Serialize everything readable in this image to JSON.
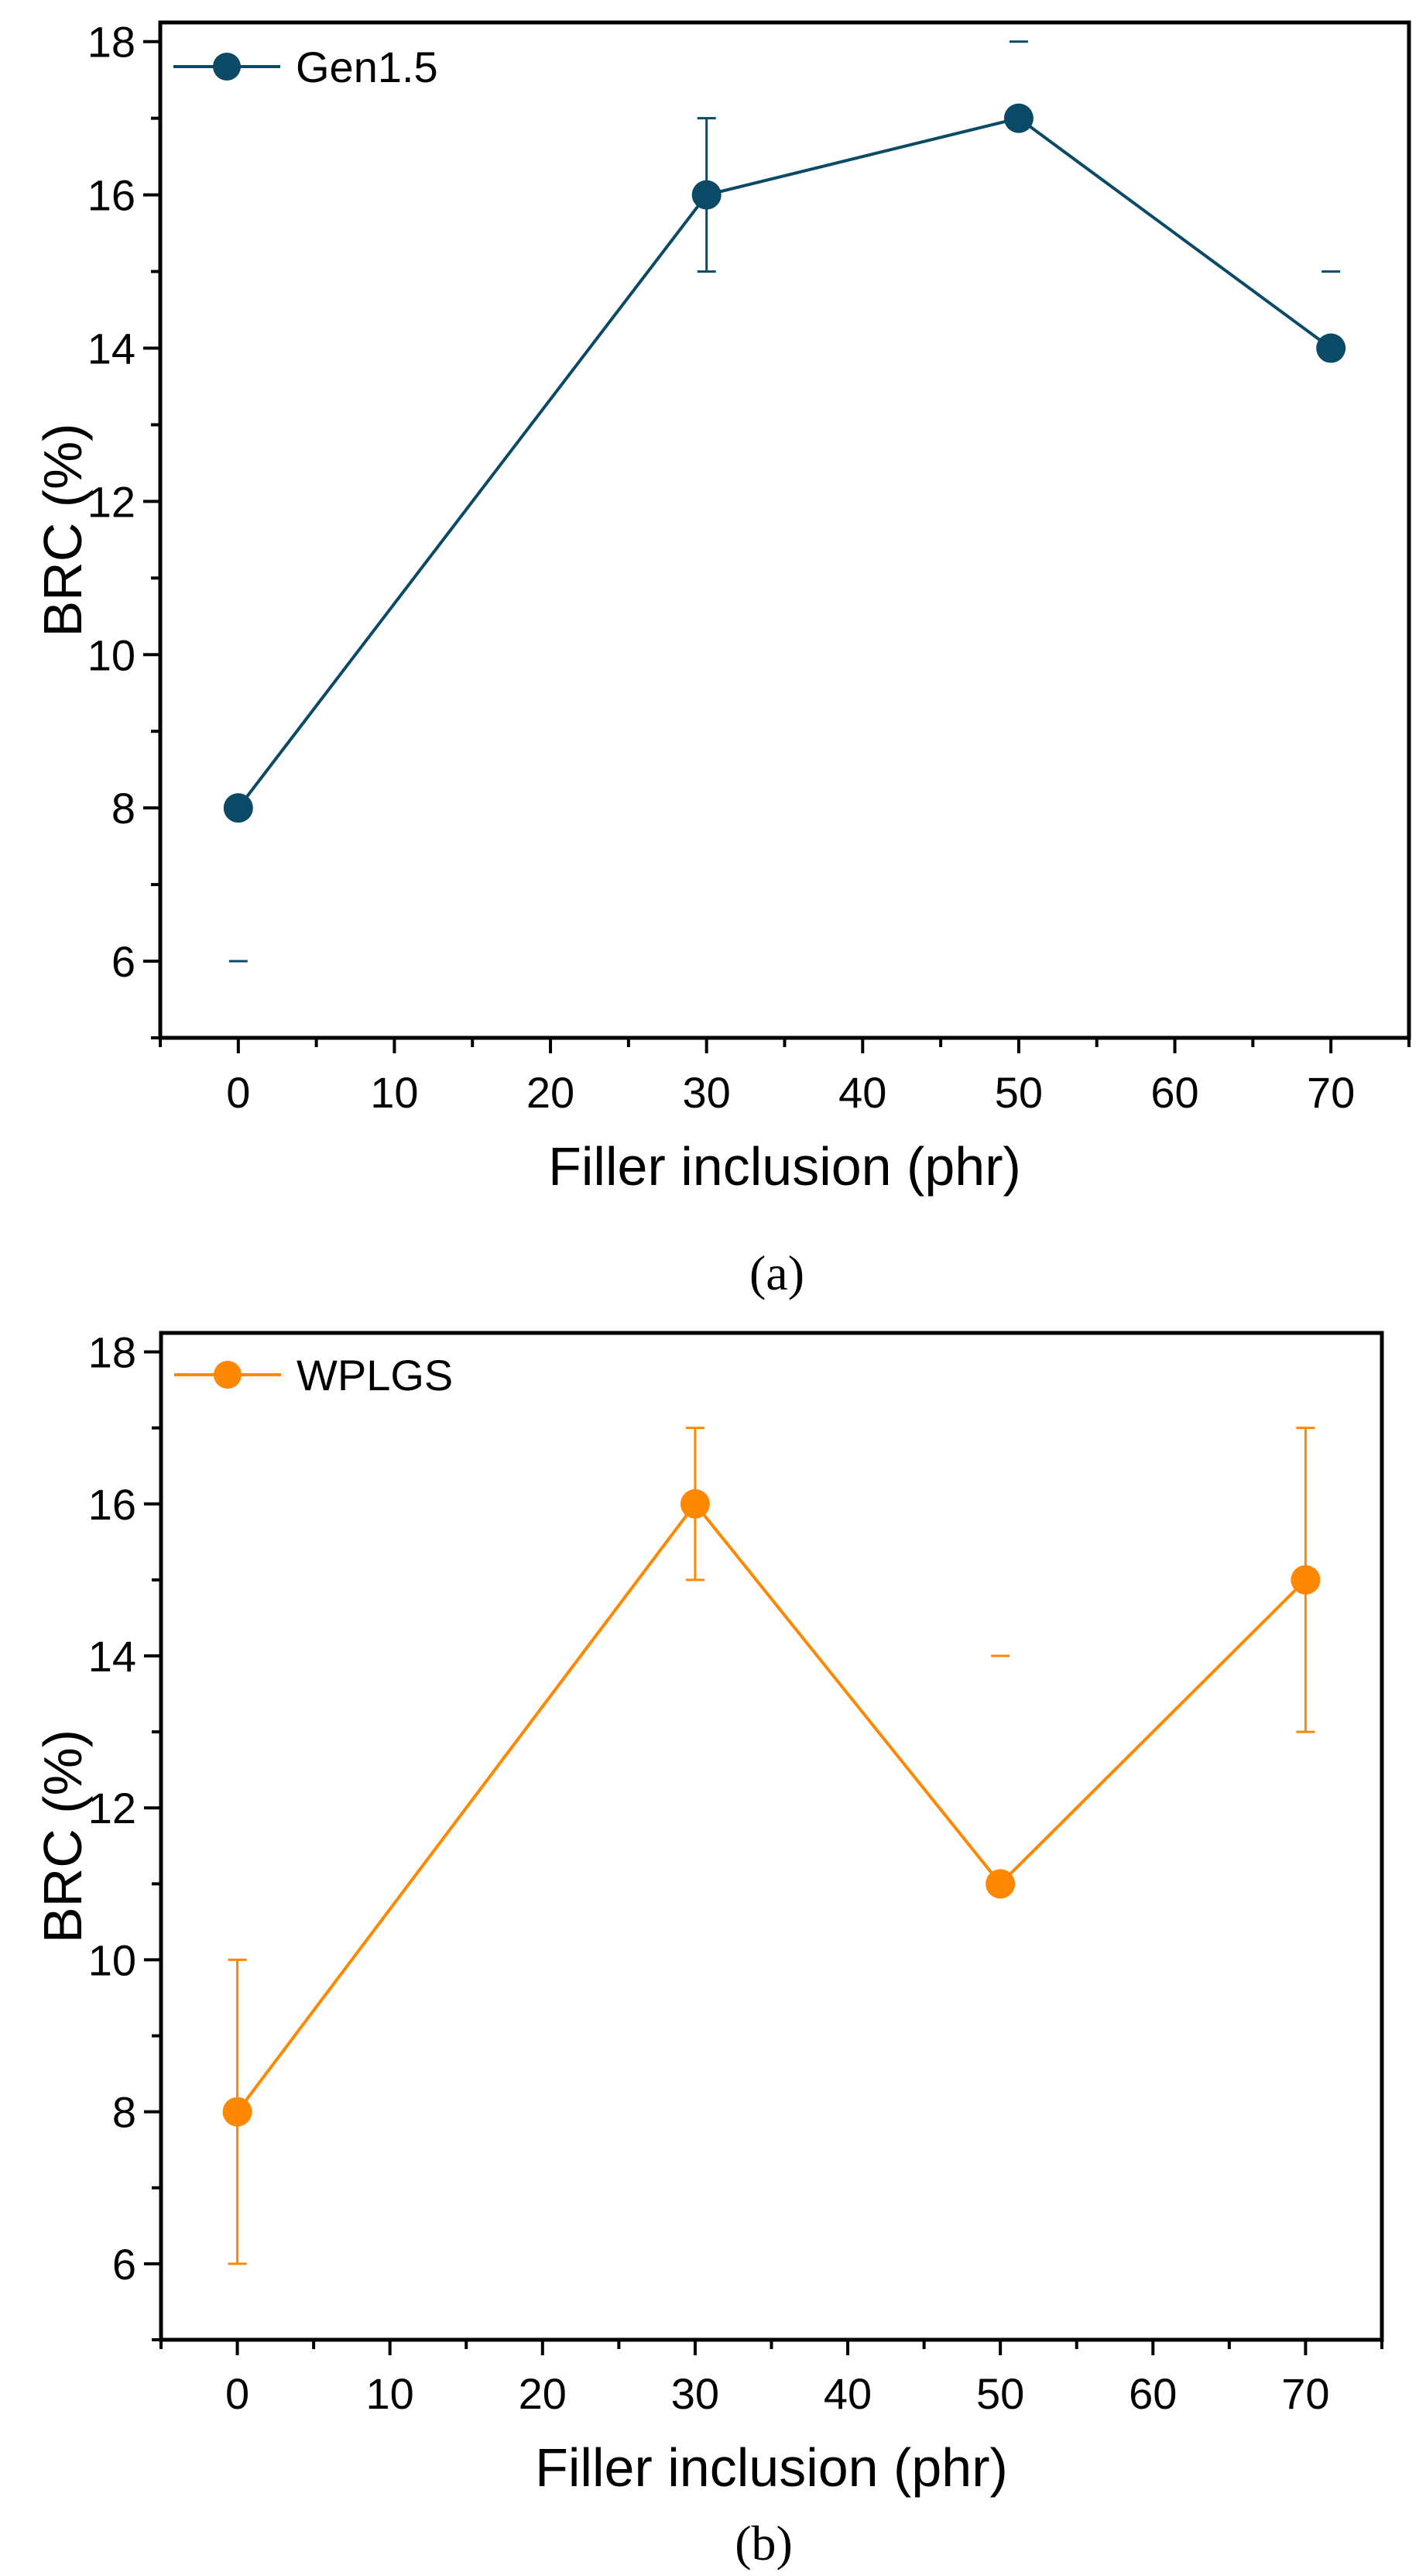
{
  "chart_data": [
    {
      "type": "line",
      "panel_label": "(a)",
      "panel_letter": "a",
      "title": "",
      "xlabel": "Filler inclusion (phr)",
      "ylabel": "BRC (%)",
      "xlim": [
        -5,
        75
      ],
      "ylim": [
        5,
        18.25
      ],
      "xticks": [
        0,
        10,
        20,
        30,
        40,
        50,
        60,
        70
      ],
      "yticks": [
        6,
        8,
        10,
        12,
        14,
        16,
        18
      ],
      "grid": false,
      "legend_position": "top-left",
      "series": [
        {
          "name": "Gen1.5",
          "color": "#0a4a66",
          "x": [
            0,
            30,
            50,
            70
          ],
          "y": [
            8,
            16,
            17,
            14
          ],
          "yerr_low_value": [
            6,
            15,
            null,
            null
          ],
          "yerr_high_value": [
            null,
            17,
            18,
            15
          ]
        }
      ]
    },
    {
      "type": "line",
      "panel_label": "(b)",
      "panel_letter": "b",
      "title": "",
      "xlabel": "Filler inclusion (phr)",
      "ylabel": "BRC (%)",
      "xlim": [
        -5,
        75
      ],
      "ylim": [
        5,
        18.25
      ],
      "xticks": [
        0,
        10,
        20,
        30,
        40,
        50,
        60,
        70
      ],
      "yticks": [
        6,
        8,
        10,
        12,
        14,
        16,
        18
      ],
      "grid": false,
      "legend_position": "top-left",
      "series": [
        {
          "name": "WPLGS",
          "color": "#ff8800",
          "x": [
            0,
            30,
            50,
            70
          ],
          "y": [
            8,
            16,
            11,
            15
          ],
          "yerr_low_value": [
            6,
            15,
            null,
            13
          ],
          "yerr_high_value": [
            10,
            17,
            14,
            17
          ]
        }
      ]
    }
  ]
}
